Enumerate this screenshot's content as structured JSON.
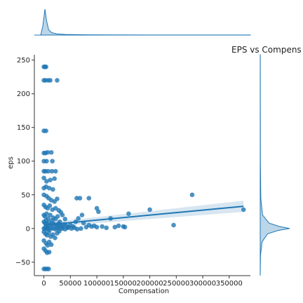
{
  "chart_data": {
    "type": "scatter",
    "title": "EPS vs Compens",
    "xlabel": "Compensation",
    "ylabel": "eps",
    "xlim": [
      -18000,
      390000
    ],
    "ylim": [
      -70,
      258
    ],
    "xticks": [
      0,
      50000,
      100000,
      150000,
      200000,
      250000,
      300000,
      350000
    ],
    "xtick_labels": [
      "0",
      "50000",
      "100000",
      "150000",
      "200000",
      "250000",
      "300000",
      "350000"
    ],
    "yticks": [
      -50,
      0,
      50,
      100,
      150,
      200,
      250
    ],
    "ytick_labels": [
      "−50",
      "0",
      "50",
      "100",
      "150",
      "200",
      "250"
    ],
    "grid": false,
    "color": "#1f77b4",
    "points": [
      {
        "x": 0,
        "y": 240
      },
      {
        "x": 2000,
        "y": 240
      },
      {
        "x": 4000,
        "y": 240
      },
      {
        "x": 0,
        "y": 220
      },
      {
        "x": 3000,
        "y": 220
      },
      {
        "x": 8000,
        "y": 220
      },
      {
        "x": 12000,
        "y": 220
      },
      {
        "x": 25000,
        "y": 220
      },
      {
        "x": 0,
        "y": 145
      },
      {
        "x": 4000,
        "y": 145
      },
      {
        "x": 0,
        "y": 112
      },
      {
        "x": 3000,
        "y": 112
      },
      {
        "x": 7000,
        "y": 113
      },
      {
        "x": 14000,
        "y": 113
      },
      {
        "x": 0,
        "y": 100
      },
      {
        "x": 5000,
        "y": 100
      },
      {
        "x": 16000,
        "y": 100
      },
      {
        "x": 0,
        "y": 85
      },
      {
        "x": 3000,
        "y": 85
      },
      {
        "x": 8000,
        "y": 85
      },
      {
        "x": 15000,
        "y": 85
      },
      {
        "x": 22000,
        "y": 85
      },
      {
        "x": 0,
        "y": 75
      },
      {
        "x": 5000,
        "y": 70
      },
      {
        "x": 12000,
        "y": 72
      },
      {
        "x": 20000,
        "y": 74
      },
      {
        "x": 0,
        "y": 60
      },
      {
        "x": 4000,
        "y": 62
      },
      {
        "x": 10000,
        "y": 60
      },
      {
        "x": 17000,
        "y": 58
      },
      {
        "x": 0,
        "y": 50
      },
      {
        "x": 5000,
        "y": 48
      },
      {
        "x": 9000,
        "y": 45
      },
      {
        "x": 14000,
        "y": 42
      },
      {
        "x": 20000,
        "y": 40
      },
      {
        "x": 25000,
        "y": 44
      },
      {
        "x": 0,
        "y": 35
      },
      {
        "x": 3000,
        "y": 32
      },
      {
        "x": 7000,
        "y": 30
      },
      {
        "x": 11000,
        "y": 34
      },
      {
        "x": 16000,
        "y": 28
      },
      {
        "x": 22000,
        "y": 30
      },
      {
        "x": 28000,
        "y": 27
      },
      {
        "x": 32000,
        "y": 24
      },
      {
        "x": 0,
        "y": 20
      },
      {
        "x": 2000,
        "y": 18
      },
      {
        "x": 5000,
        "y": 22
      },
      {
        "x": 8000,
        "y": 15
      },
      {
        "x": 12000,
        "y": 20
      },
      {
        "x": 15000,
        "y": 12
      },
      {
        "x": 18000,
        "y": 16
      },
      {
        "x": 22000,
        "y": 14
      },
      {
        "x": 26000,
        "y": 18
      },
      {
        "x": 30000,
        "y": 10
      },
      {
        "x": 35000,
        "y": 20
      },
      {
        "x": 40000,
        "y": 14
      },
      {
        "x": 0,
        "y": 10
      },
      {
        "x": 2000,
        "y": 8
      },
      {
        "x": 4000,
        "y": 12
      },
      {
        "x": 6000,
        "y": 6
      },
      {
        "x": 9000,
        "y": 9
      },
      {
        "x": 13000,
        "y": 5
      },
      {
        "x": 17000,
        "y": 8
      },
      {
        "x": 20000,
        "y": 6
      },
      {
        "x": 24000,
        "y": 4
      },
      {
        "x": 27000,
        "y": 7
      },
      {
        "x": 31000,
        "y": 5
      },
      {
        "x": 34000,
        "y": 3
      },
      {
        "x": 38000,
        "y": 6
      },
      {
        "x": 42000,
        "y": 4
      },
      {
        "x": 46000,
        "y": 2
      },
      {
        "x": 50000,
        "y": 5
      },
      {
        "x": 55000,
        "y": 3
      },
      {
        "x": 0,
        "y": 0
      },
      {
        "x": 2000,
        "y": 1
      },
      {
        "x": 4000,
        "y": -1
      },
      {
        "x": 6000,
        "y": 2
      },
      {
        "x": 8000,
        "y": 0
      },
      {
        "x": 11000,
        "y": -2
      },
      {
        "x": 14000,
        "y": 1
      },
      {
        "x": 18000,
        "y": 0
      },
      {
        "x": 22000,
        "y": -1
      },
      {
        "x": 26000,
        "y": 1
      },
      {
        "x": 30000,
        "y": 0
      },
      {
        "x": 35000,
        "y": 0
      },
      {
        "x": 40000,
        "y": -1
      },
      {
        "x": 45000,
        "y": 1
      },
      {
        "x": 52000,
        "y": 0
      },
      {
        "x": 58000,
        "y": 1
      },
      {
        "x": 63000,
        "y": -1
      },
      {
        "x": 70000,
        "y": 0
      },
      {
        "x": 0,
        "y": -5
      },
      {
        "x": 3000,
        "y": -8
      },
      {
        "x": 6000,
        "y": -10
      },
      {
        "x": 9000,
        "y": -6
      },
      {
        "x": 13000,
        "y": -12
      },
      {
        "x": 17000,
        "y": -9
      },
      {
        "x": 21000,
        "y": -14
      },
      {
        "x": 25000,
        "y": -7
      },
      {
        "x": 29000,
        "y": -4
      },
      {
        "x": 0,
        "y": -18
      },
      {
        "x": 4000,
        "y": -22
      },
      {
        "x": 7000,
        "y": -25
      },
      {
        "x": 10000,
        "y": -20
      },
      {
        "x": 14000,
        "y": -24
      },
      {
        "x": 0,
        "y": -30
      },
      {
        "x": 3000,
        "y": -33
      },
      {
        "x": 6000,
        "y": -36
      },
      {
        "x": 10000,
        "y": -35
      },
      {
        "x": 0,
        "y": -60
      },
      {
        "x": 3000,
        "y": -60
      },
      {
        "x": 6000,
        "y": -60
      },
      {
        "x": 9000,
        "y": -60
      },
      {
        "x": 62000,
        "y": 45
      },
      {
        "x": 68000,
        "y": 45
      },
      {
        "x": 85000,
        "y": 45
      },
      {
        "x": 60000,
        "y": 10
      },
      {
        "x": 65000,
        "y": 15
      },
      {
        "x": 72000,
        "y": 20
      },
      {
        "x": 75000,
        "y": 8
      },
      {
        "x": 80000,
        "y": 2
      },
      {
        "x": 85000,
        "y": 5
      },
      {
        "x": 90000,
        "y": 3
      },
      {
        "x": 95000,
        "y": 4
      },
      {
        "x": 100000,
        "y": 30
      },
      {
        "x": 103000,
        "y": 25
      },
      {
        "x": 100000,
        "y": 2
      },
      {
        "x": 110000,
        "y": 3
      },
      {
        "x": 118000,
        "y": 1
      },
      {
        "x": 126000,
        "y": 15
      },
      {
        "x": 134000,
        "y": 2
      },
      {
        "x": 141000,
        "y": 4
      },
      {
        "x": 150000,
        "y": 3
      },
      {
        "x": 153000,
        "y": 2
      },
      {
        "x": 160000,
        "y": 22
      },
      {
        "x": 200000,
        "y": 28
      },
      {
        "x": 245000,
        "y": 5
      },
      {
        "x": 280000,
        "y": 50
      },
      {
        "x": 377000,
        "y": 28
      }
    ],
    "regression": {
      "x0": 0,
      "y0": 5,
      "x1": 377000,
      "y1": 33
    },
    "x_density": [
      [
        -18000,
        0
      ],
      [
        -6000,
        0.004
      ],
      [
        -2000,
        0.35
      ],
      [
        2000,
        1.0
      ],
      [
        5000,
        0.55
      ],
      [
        9000,
        0.2
      ],
      [
        15000,
        0.09
      ],
      [
        25000,
        0.045
      ],
      [
        40000,
        0.025
      ],
      [
        70000,
        0.012
      ],
      [
        120000,
        0.008
      ],
      [
        200000,
        0.005
      ],
      [
        300000,
        0.003
      ],
      [
        390000,
        0.002
      ]
    ],
    "y_density": [
      [
        -70,
        0
      ],
      [
        -40,
        0.01
      ],
      [
        -20,
        0.06
      ],
      [
        -8,
        0.25
      ],
      [
        -3,
        0.6
      ],
      [
        0,
        1.0
      ],
      [
        3,
        0.65
      ],
      [
        8,
        0.3
      ],
      [
        20,
        0.08
      ],
      [
        45,
        0.02
      ],
      [
        100,
        0.006
      ],
      [
        258,
        0.002
      ]
    ]
  }
}
